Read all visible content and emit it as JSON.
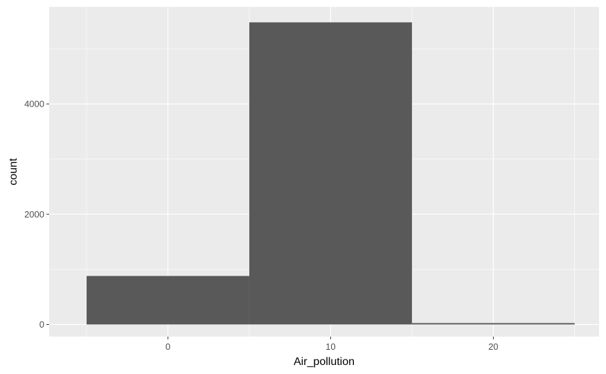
{
  "chart_data": {
    "type": "bar",
    "subtype": "histogram",
    "xlabel": "Air_pollution",
    "ylabel": "count",
    "bins": [
      {
        "x0": -5,
        "x1": 5,
        "count": 880
      },
      {
        "x0": 5,
        "x1": 15,
        "count": 5480
      },
      {
        "x0": 15,
        "x1": 25,
        "count": 25
      }
    ],
    "xlim": [
      -7.3,
      26.5
    ],
    "ylim": [
      -220,
      5760
    ],
    "x_ticks": [
      0,
      10,
      20
    ],
    "x_tick_labels": [
      "0",
      "10",
      "20"
    ],
    "y_ticks": [
      0,
      2000,
      4000
    ],
    "y_tick_labels": [
      "0",
      "2000",
      "4000"
    ],
    "x_minor_ticks": [
      -5,
      5,
      15,
      25
    ],
    "y_minor_ticks": [
      1000,
      3000,
      5000
    ],
    "grid": true,
    "legend": "none"
  },
  "colors": {
    "panel_background": "#ebebeb",
    "grid": "#ffffff",
    "bar_fill": "#595959",
    "tick_label": "#4d4d4d",
    "tick_mark": "#333333",
    "axis_title": "#000000"
  }
}
